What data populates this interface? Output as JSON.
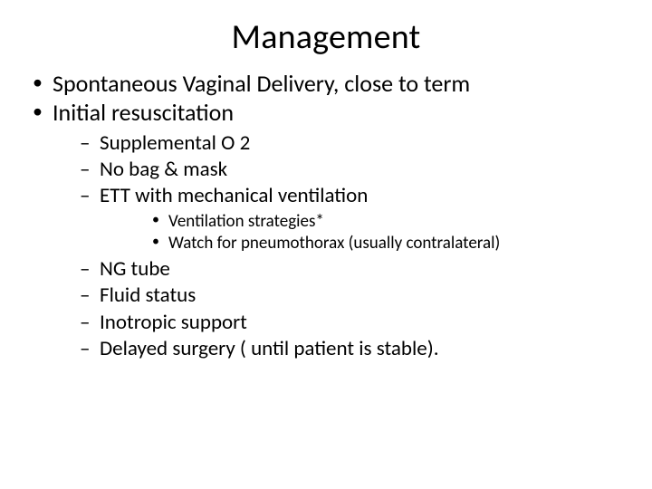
{
  "slide": {
    "title": "Management",
    "title_fontsize": 38,
    "title_align": "center",
    "background_color": "#ffffff",
    "text_color": "#000000",
    "font_family": "Calibri",
    "bullets": {
      "level1_fontsize": 26,
      "level2_fontsize": 23,
      "level3_fontsize": 19,
      "level1_marker": "•",
      "level2_marker": "–",
      "level3_marker": "•",
      "items": [
        {
          "text": "Spontaneous Vaginal Delivery, close to term"
        },
        {
          "text": "Initial resuscitation",
          "children": [
            {
              "text": "Supplemental O 2"
            },
            {
              "text": "No bag & mask"
            },
            {
              "text": "ETT with mechanical ventilation",
              "children": [
                {
                  "text": "Ventilation strategies*"
                },
                {
                  "text": "Watch for pneumothorax (usually contralateral)"
                }
              ]
            },
            {
              "text": "NG tube"
            },
            {
              "text": "Fluid status"
            },
            {
              "text": "Inotropic support"
            },
            {
              "text": "Delayed surgery ( until patient is stable)."
            }
          ]
        }
      ]
    }
  }
}
